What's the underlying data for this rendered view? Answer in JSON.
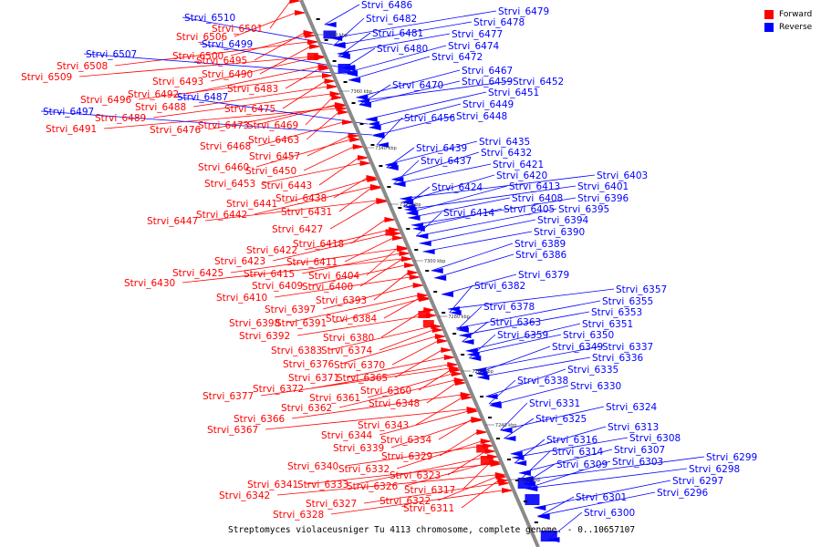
{
  "legend": {
    "forward_label": "Forward",
    "reverse_label": "Reverse",
    "forward_color": "#ff0000",
    "reverse_color": "#0000ff"
  },
  "caption": "Streptomyces violaceusniger Tu 4113 chromosome, complete genome. - 0..10657107",
  "ticks": [
    "7380 kbp",
    "7360 kbp",
    "7340 kbp",
    "7320 kbp",
    "7300 kbp",
    "7280 kbp",
    "7260 kbp",
    "7240 kbp",
    "7220 kbp"
  ],
  "forward_genes": [
    "Strvi_6501",
    "Strvi_6506",
    "Strvi_6500",
    "Strvi_6495",
    "Strvi_6508",
    "Strvi_6509",
    "Strvi_6490",
    "Strvi_6493",
    "Strvi_6483",
    "Strvi_6492",
    "Strvi_6496",
    "Strvi_6488",
    "Strvi_6475",
    "Strvi_6489",
    "Strvi_6473",
    "Strvi_6469",
    "Strvi_6476",
    "Strvi_6491",
    "Strvi_6463",
    "Strvi_6468",
    "Strvi_6457",
    "Strvi_6460",
    "Strvi_6450",
    "Strvi_6453",
    "Strvi_6443",
    "Strvi_6441",
    "Strvi_6438",
    "Strvi_6442",
    "Strvi_6431",
    "Strvi_6447",
    "Strvi_6427",
    "Strvi_6418",
    "Strvi_6422",
    "Strvi_6423",
    "Strvi_6411",
    "Strvi_6415",
    "Strvi_6404",
    "Strvi_6425",
    "Strvi_6409",
    "Strvi_6400",
    "Strvi_6430",
    "Strvi_6410",
    "Strvi_6393",
    "Strvi_6397",
    "Strvi_6384",
    "Strvi_6398",
    "Strvi_6391",
    "Strvi_6392",
    "Strvi_6380",
    "Strvi_6383",
    "Strvi_6374",
    "Strvi_6376",
    "Strvi_6370",
    "Strvi_6371",
    "Strvi_6365",
    "Strvi_6372",
    "Strvi_6360",
    "Strvi_6377",
    "Strvi_6361",
    "Strvi_6348",
    "Strvi_6362",
    "Strvi_6366",
    "Strvi_6367",
    "Strvi_6343",
    "Strvi_6344",
    "Strvi_6334",
    "Strvi_6339",
    "Strvi_6329",
    "Strvi_6340",
    "Strvi_6332",
    "Strvi_6323",
    "Strvi_6341",
    "Strvi_6333",
    "Strvi_6326",
    "Strvi_6342",
    "Strvi_6317",
    "Strvi_6322",
    "Strvi_6327",
    "Strvi_6311",
    "Strvi_6328"
  ],
  "reverse_genes": [
    "Strvi_6510",
    "Strvi_6499",
    "Strvi_6507",
    "Strvi_6487",
    "Strvi_6497",
    "Strvi_6486",
    "Strvi_6482",
    "Strvi_6481",
    "Strvi_6480",
    "Strvi_6479",
    "Strvi_6478",
    "Strvi_6477",
    "Strvi_6474",
    "Strvi_6472",
    "Strvi_6470",
    "Strvi_6467",
    "Strvi_6459",
    "Strvi_6452",
    "Strvi_6451",
    "Strvi_6449",
    "Strvi_6448",
    "Strvi_6456",
    "Strvi_6435",
    "Strvi_6439",
    "Strvi_6432",
    "Strvi_6437",
    "Strvi_6421",
    "Strvi_6420",
    "Strvi_6403",
    "Strvi_6424",
    "Strvi_6413",
    "Strvi_6401",
    "Strvi_6408",
    "Strvi_6396",
    "Strvi_6414",
    "Strvi_6405",
    "Strvi_6395",
    "Strvi_6394",
    "Strvi_6390",
    "Strvi_6389",
    "Strvi_6386",
    "Strvi_6379",
    "Strvi_6382",
    "Strvi_6378",
    "Strvi_6357",
    "Strvi_6355",
    "Strvi_6353",
    "Strvi_6363",
    "Strvi_6351",
    "Strvi_6359",
    "Strvi_6350",
    "Strvi_6349",
    "Strvi_6337",
    "Strvi_6336",
    "Strvi_6335",
    "Strvi_6338",
    "Strvi_6330",
    "Strvi_6331",
    "Strvi_6324",
    "Strvi_6325",
    "Strvi_6313",
    "Strvi_6316",
    "Strvi_6308",
    "Strvi_6314",
    "Strvi_6307",
    "Strvi_6309",
    "Strvi_6303",
    "Strvi_6299",
    "Strvi_6298",
    "Strvi_6297",
    "Strvi_6296",
    "Strvi_6301",
    "Strvi_6300"
  ]
}
